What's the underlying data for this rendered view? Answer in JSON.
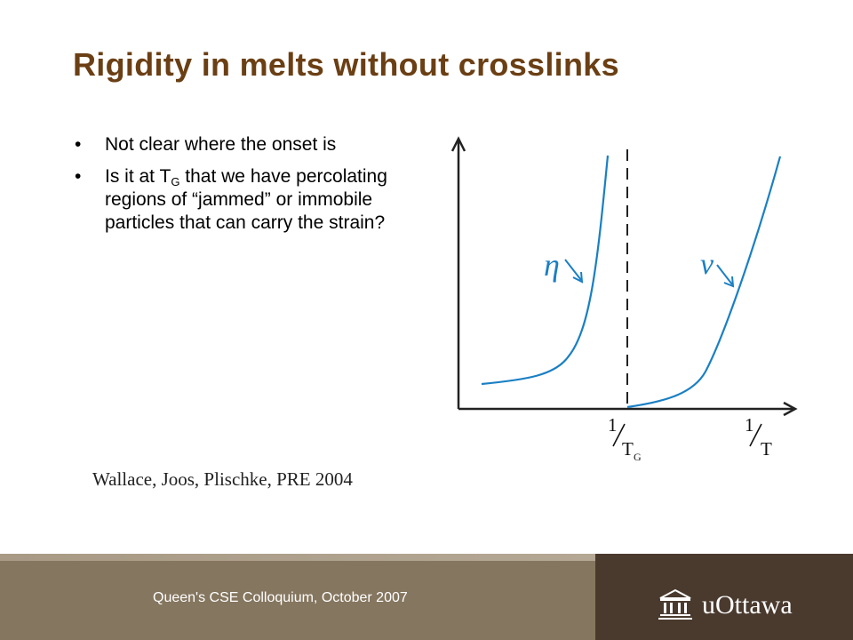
{
  "slide": {
    "title": "Rigidity in melts without crosslinks",
    "bullets": [
      {
        "marker": "•",
        "text": "Not clear where the onset is"
      },
      {
        "marker": "•",
        "pre": "Is it at T",
        "sub": "G",
        "post": " that we have percolating regions of “jammed” or immobile particles that can carry the strain?"
      }
    ],
    "citation": "Wallace, Joos, Plischke, PRE 2004"
  },
  "figure": {
    "eta_label": "η",
    "nu_label": "ν",
    "tick1_num": "1",
    "tick1_den": "T",
    "tick1_sub": "G",
    "tick2_num": "1",
    "tick2_den": "T",
    "curve_color": "#1a7fc4"
  },
  "footer": {
    "text": "Queen's CSE Colloquium, October 2007",
    "logo_text": "uOttawa",
    "logo_icon": "building-icon"
  },
  "colors": {
    "title": "#6b3f14",
    "footer_left": "#85765f",
    "footer_right": "#4a3a2e"
  }
}
